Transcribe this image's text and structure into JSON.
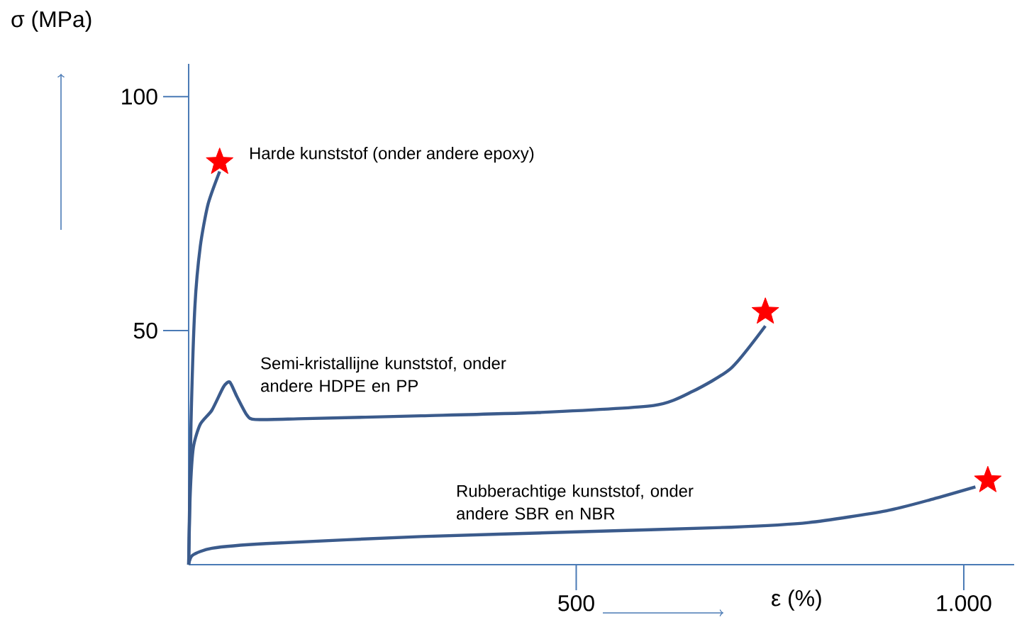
{
  "chart_data": {
    "type": "line",
    "xlabel": "ε (%)",
    "ylabel": "σ (MPa)",
    "xlim": [
      0,
      1065
    ],
    "ylim": [
      0,
      107
    ],
    "xticks": [
      500,
      {
        "value": 1000,
        "label": "1.000"
      }
    ],
    "yticks": [
      50,
      100
    ],
    "series": [
      {
        "color": "#3b5b8c",
        "x": [
          0,
          3,
          8,
          15,
          25,
          40
        ],
        "values": [
          0,
          30,
          55,
          68,
          77,
          84
        ]
      },
      {
        "color": "#3b5b8c",
        "x": [
          0,
          2,
          6,
          15,
          30,
          45,
          53,
          62,
          75,
          86,
          150,
          300,
          450,
          600,
          650,
          700,
          744
        ],
        "values": [
          0,
          15,
          25,
          30,
          33,
          38,
          39,
          36,
          32,
          31,
          31.2,
          31.8,
          32.5,
          34,
          37,
          42,
          51
        ]
      },
      {
        "color": "#3b5b8c",
        "x": [
          0,
          5,
          30,
          100,
          300,
          500,
          700,
          800,
          900,
          960,
          1015
        ],
        "values": [
          0,
          2,
          3.5,
          4.5,
          6,
          7,
          8,
          9,
          11.5,
          14,
          16.6
        ]
      },
      {
        "type": "scatter",
        "color": "#ff0000",
        "marker": "star",
        "x": [
          40,
          744,
          1031
        ],
        "values": [
          86,
          54,
          18
        ]
      }
    ],
    "annotations": [
      "Harde kunststof (onder andere epoxy)",
      "Semi-kristallijne kunststof, onder andere HDPE en PP",
      "Rubberachtige kunststof, onder andere SBR en NBR"
    ]
  }
}
